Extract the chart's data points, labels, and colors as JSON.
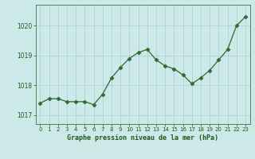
{
  "x": [
    0,
    1,
    2,
    3,
    4,
    5,
    6,
    7,
    8,
    9,
    10,
    11,
    12,
    13,
    14,
    15,
    16,
    17,
    18,
    19,
    20,
    21,
    22,
    23
  ],
  "y": [
    1017.4,
    1017.55,
    1017.55,
    1017.45,
    1017.45,
    1017.45,
    1017.35,
    1017.7,
    1018.25,
    1018.6,
    1018.9,
    1019.1,
    1019.2,
    1018.85,
    1018.65,
    1018.55,
    1018.35,
    1018.05,
    1018.25,
    1018.5,
    1018.85,
    1019.2,
    1020.0,
    1020.3
  ],
  "line_color": "#2d6a2d",
  "marker": "D",
  "marker_size": 2.5,
  "bg_color": "#cce8e8",
  "grid_color": "#aacfcf",
  "xlabel": "Graphe pression niveau de la mer (hPa)",
  "xlabel_color": "#1a5c1a",
  "tick_color": "#1a5c1a",
  "ylim": [
    1016.7,
    1020.7
  ],
  "yticks": [
    1017,
    1018,
    1019,
    1020
  ],
  "xlim": [
    -0.5,
    23.5
  ],
  "xticks": [
    0,
    1,
    2,
    3,
    4,
    5,
    6,
    7,
    8,
    9,
    10,
    11,
    12,
    13,
    14,
    15,
    16,
    17,
    18,
    19,
    20,
    21,
    22,
    23
  ]
}
